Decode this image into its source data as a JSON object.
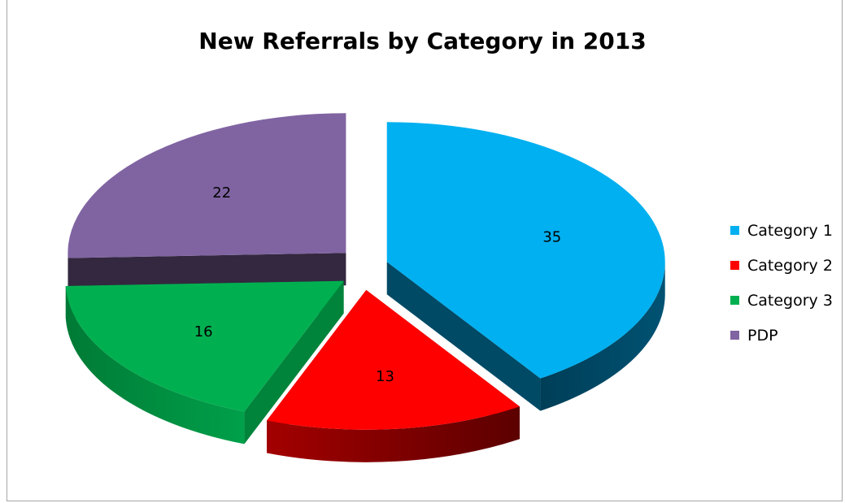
{
  "chart_data": {
    "type": "pie",
    "title": "New Referrals by Category in 2013",
    "legend_position": "right",
    "exploded": true,
    "three_d": true,
    "categories": [
      "Category 1",
      "Category 2",
      "Category 3",
      "PDP"
    ],
    "values": [
      35,
      13,
      16,
      22
    ],
    "colors": [
      "#00B0F0",
      "#FF0000",
      "#00B050",
      "#8064A2"
    ],
    "side_colors": [
      "#004A66",
      "#8B0000",
      "#00843B",
      "#33283F"
    ]
  }
}
